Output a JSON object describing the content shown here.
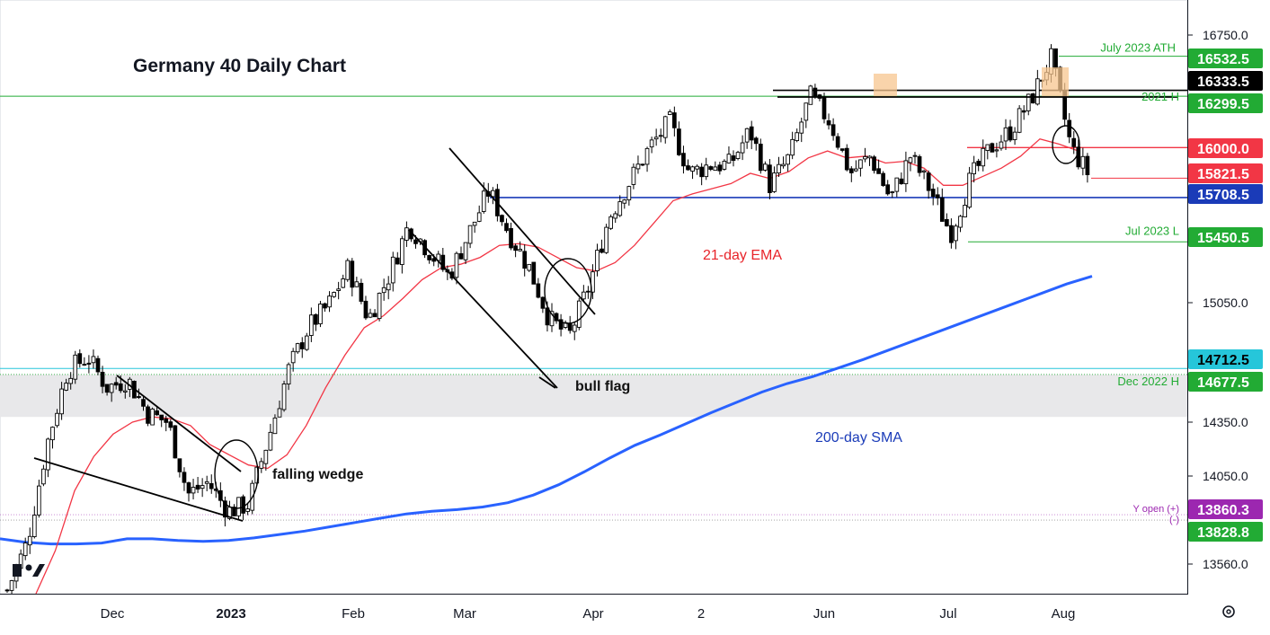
{
  "chart_data": {
    "type": "candlestick",
    "title": "Germany 40 Daily Chart",
    "x_axis_labels": [
      "Dec",
      "2023",
      "Feb",
      "Mar",
      "Apr",
      "2",
      "Jun",
      "Jul",
      "Aug"
    ],
    "y_axis_ticks": [
      16750.0,
      15050.0,
      14350.0,
      14050.0,
      13560.0
    ],
    "y_axis_tick_labels": [
      "16750.0",
      "15050.0",
      "14350.0",
      "14050.0",
      "13560.0"
    ],
    "ylim": [
      13400,
      16860
    ],
    "price_labels": [
      {
        "text": "16532.5",
        "value": 16532.5,
        "color": "#22ab34",
        "text_color": "#ffffff"
      },
      {
        "text": "16333.5",
        "value": 16333.5,
        "color": "#000000",
        "text_color": "#ffffff"
      },
      {
        "text": "16299.5",
        "value": 16299.5,
        "color": "#22ab34",
        "text_color": "#ffffff"
      },
      {
        "text": "16000.0",
        "value": 16000.0,
        "color": "#f23645",
        "text_color": "#ffffff"
      },
      {
        "text": "15821.5",
        "value": 15821.5,
        "color": "#f23645",
        "text_color": "#ffffff"
      },
      {
        "text": "15708.5",
        "value": 15708.5,
        "color": "#1a3bb8",
        "text_color": "#ffffff"
      },
      {
        "text": "15450.5",
        "value": 15450.5,
        "color": "#22ab34",
        "text_color": "#ffffff"
      },
      {
        "text": "14712.5",
        "value": 14712.5,
        "color": "#26c6da",
        "text_color": "#000000"
      },
      {
        "text": "14677.5",
        "value": 14677.5,
        "color": "#22ab34",
        "text_color": "#ffffff"
      },
      {
        "text": "13860.3",
        "value": 13860.3,
        "color": "#9c27b0",
        "text_color": "#ffffff"
      },
      {
        "text": "13828.8",
        "value": 13828.8,
        "color": "#22ab34",
        "text_color": "#ffffff"
      }
    ],
    "level_labels": [
      {
        "text": "July 2023 ATH",
        "value": 16532.5,
        "color": "#22ab34"
      },
      {
        "text": "2021 H",
        "value": 16299.5,
        "color": "#22ab34"
      },
      {
        "text": "Jul 2023 L",
        "value": 15450.5,
        "color": "#22ab34"
      },
      {
        "text": "Dec 2022 H",
        "value": 14677.5,
        "color": "#22ab34"
      },
      {
        "text": "Y open (+)",
        "value": 13860.3,
        "color": "#9c27b0"
      },
      {
        "text": "(-)",
        "value": 13828.8,
        "color": "#9c27b0"
      }
    ],
    "annotations": [
      {
        "text": "21-day EMA",
        "color": "#e8242a"
      },
      {
        "text": "200-day SMA",
        "color": "#1a3bb8"
      },
      {
        "text": "bull flag",
        "color": "#111111"
      },
      {
        "text": "falling wedge",
        "color": "#111111"
      }
    ],
    "horizontal_levels": [
      {
        "value": 16532.5,
        "color": "#22ab34"
      },
      {
        "value": 16333.5,
        "color": "#000000"
      },
      {
        "value": 16299.5,
        "color": "#22ab34"
      },
      {
        "value": 16000.0,
        "color": "#f23645"
      },
      {
        "value": 15821.5,
        "color": "#f23645"
      },
      {
        "value": 15708.5,
        "color": "#1a3bb8"
      },
      {
        "value": 15450.5,
        "color": "#22ab34"
      },
      {
        "value": 14712.5,
        "color": "#26c6da"
      }
    ],
    "shaded_zone": {
      "from": 14677.5,
      "to": 14430,
      "color": "#e8e8ea"
    },
    "series": [
      {
        "role": "price",
        "values": [
          13420,
          13700,
          14280,
          14700,
          14780,
          14600,
          14650,
          14450,
          14400,
          13980,
          14050,
          13880,
          13920,
          14300,
          14700,
          14950,
          15080,
          15300,
          15000,
          15250,
          15550,
          15400,
          15250,
          15500,
          15750,
          15500,
          15300,
          15000,
          14900,
          15200,
          15600,
          15800,
          16000,
          16150,
          15850,
          15900,
          15900,
          16100,
          15780,
          15950,
          16300,
          16150,
          15850,
          15950,
          15700,
          15950,
          15750,
          15500,
          15820,
          16000,
          16100,
          16280,
          16520,
          16000,
          15821.5
        ]
      },
      {
        "role": "ema21",
        "values": [
          13400,
          13650,
          14000,
          14200,
          14330,
          14400,
          14430,
          14420,
          14380,
          14270,
          14210,
          14150,
          14130,
          14210,
          14380,
          14600,
          14790,
          14950,
          15020,
          15120,
          15230,
          15300,
          15320,
          15360,
          15430,
          15440,
          15420,
          15360,
          15300,
          15280,
          15330,
          15430,
          15560,
          15690,
          15730,
          15760,
          15790,
          15850,
          15820,
          15860,
          15940,
          15980,
          15940,
          15950,
          15910,
          15920,
          15880,
          15780,
          15780,
          15830,
          15880,
          15950,
          16050,
          16020,
          15980
        ]
      },
      {
        "role": "sma200",
        "values": [
          13720,
          13700,
          13690,
          13690,
          13695,
          13720,
          13720,
          13710,
          13705,
          13710,
          13725,
          13745,
          13765,
          13790,
          13815,
          13840,
          13865,
          13880,
          13890,
          13905,
          13930,
          13975,
          14035,
          14110,
          14190,
          14265,
          14325,
          14390,
          14455,
          14515,
          14575,
          14625,
          14665,
          14715,
          14765,
          14820,
          14875,
          14930,
          14985,
          15040,
          15095,
          15150,
          15205,
          15250
        ]
      }
    ]
  }
}
